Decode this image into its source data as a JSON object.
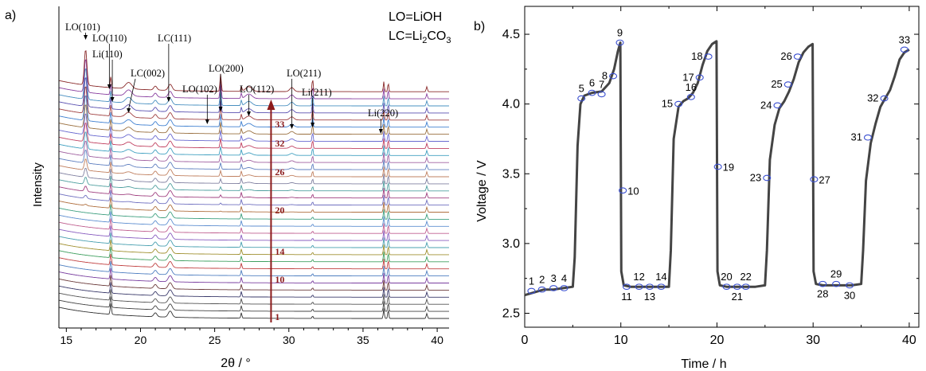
{
  "chart_data": [
    {
      "panel_label": "a)",
      "type": "line",
      "xlabel": "2θ / °",
      "ylabel": "Intensity",
      "xlim": [
        14.5,
        40.8
      ],
      "x_ticks": [
        15,
        20,
        25,
        30,
        35,
        40
      ],
      "legend_lines": [
        "LO=LiOH",
        "LC=Li2CO3"
      ],
      "arrow_labels": [
        "1",
        "10",
        "14",
        "20",
        "26",
        "32",
        "33"
      ],
      "peaks": [
        {
          "label": "LO(101)",
          "x": 16.3
        },
        {
          "label": "LO(110)",
          "x": 17.9
        },
        {
          "label": "Li(110)",
          "x": 18.1
        },
        {
          "label": "LC(002)",
          "x": 19.2
        },
        {
          "label": "LC(111)",
          "x": 21.9
        },
        {
          "label": "LO(102)",
          "x": 24.5
        },
        {
          "label": "LO(200)",
          "x": 25.4
        },
        {
          "label": "LO(112)",
          "x": 27.3
        },
        {
          "label": "LO(211)",
          "x": 30.2
        },
        {
          "label": "Li(211)",
          "x": 31.6
        },
        {
          "label": "Li(220)",
          "x": 36.2
        }
      ],
      "n_patterns": 33
    },
    {
      "panel_label": "b)",
      "type": "line",
      "xlabel": "Time / h",
      "ylabel": "Voltage / V",
      "xlim": [
        0,
        41
      ],
      "ylim": [
        2.4,
        4.7
      ],
      "x_ticks": [
        0,
        10,
        20,
        30,
        40
      ],
      "y_ticks": [
        "2.5",
        "3.0",
        "3.5",
        "4.0",
        "4.5"
      ],
      "curve": {
        "x": [
          0,
          1,
          2,
          3,
          4,
          5,
          5.2,
          5.5,
          5.8,
          6.2,
          7,
          8,
          8.8,
          9.3,
          9.7,
          9.95,
          10.05,
          10.3,
          11,
          12,
          13,
          14,
          15,
          15.2,
          15.5,
          16,
          16.5,
          17,
          17.5,
          18,
          18.5,
          19,
          19.5,
          19.95,
          20.05,
          20.3,
          21,
          22,
          23,
          24,
          25,
          25.2,
          25.5,
          26,
          26.5,
          27,
          27.5,
          28,
          28.5,
          29,
          29.5,
          29.95,
          30.05,
          30.3,
          31,
          32,
          33,
          34,
          35,
          35.2,
          35.5,
          36,
          36.5,
          37,
          37.5,
          38,
          38.5,
          39,
          39.5,
          40
        ],
        "y": [
          2.63,
          2.65,
          2.67,
          2.67,
          2.68,
          2.69,
          2.9,
          3.7,
          4.0,
          4.06,
          4.08,
          4.09,
          4.15,
          4.25,
          4.38,
          4.44,
          2.8,
          2.7,
          2.69,
          2.69,
          2.69,
          2.69,
          2.69,
          2.95,
          3.75,
          3.98,
          4.02,
          4.04,
          4.08,
          4.15,
          4.28,
          4.38,
          4.43,
          4.45,
          2.8,
          2.7,
          2.69,
          2.69,
          2.69,
          2.69,
          2.7,
          2.95,
          3.6,
          3.85,
          3.97,
          4.02,
          4.09,
          4.18,
          4.3,
          4.37,
          4.41,
          4.43,
          2.8,
          2.71,
          2.7,
          2.7,
          2.7,
          2.7,
          2.71,
          2.95,
          3.45,
          3.72,
          3.86,
          3.98,
          4.04,
          4.1,
          4.2,
          4.32,
          4.37,
          4.39
        ]
      },
      "markers": [
        {
          "label": "1",
          "x": 0.7,
          "y": 2.66
        },
        {
          "label": "2",
          "x": 1.8,
          "y": 2.67
        },
        {
          "label": "3",
          "x": 3.0,
          "y": 2.68
        },
        {
          "label": "4",
          "x": 4.1,
          "y": 2.68
        },
        {
          "label": "5",
          "x": 5.9,
          "y": 4.04
        },
        {
          "label": "6",
          "x": 7.0,
          "y": 4.08
        },
        {
          "label": "7",
          "x": 8.0,
          "y": 4.07
        },
        {
          "label": "8",
          "x": 9.2,
          "y": 4.2
        },
        {
          "label": "9",
          "x": 9.9,
          "y": 4.44
        },
        {
          "label": "10",
          "x": 10.2,
          "y": 3.38
        },
        {
          "label": "11",
          "x": 10.6,
          "y": 2.69
        },
        {
          "label": "12",
          "x": 11.9,
          "y": 2.69
        },
        {
          "label": "13",
          "x": 13.0,
          "y": 2.69
        },
        {
          "label": "14",
          "x": 14.2,
          "y": 2.69
        },
        {
          "label": "15",
          "x": 16.0,
          "y": 4.0
        },
        {
          "label": "16",
          "x": 17.3,
          "y": 4.05
        },
        {
          "label": "17",
          "x": 18.2,
          "y": 4.19
        },
        {
          "label": "18",
          "x": 19.1,
          "y": 4.34
        },
        {
          "label": "19",
          "x": 20.1,
          "y": 3.55
        },
        {
          "label": "20",
          "x": 21.0,
          "y": 2.69
        },
        {
          "label": "21",
          "x": 22.1,
          "y": 2.69
        },
        {
          "label": "22",
          "x": 23.0,
          "y": 2.69
        },
        {
          "label": "23",
          "x": 25.2,
          "y": 3.47
        },
        {
          "label": "24",
          "x": 26.3,
          "y": 3.99
        },
        {
          "label": "25",
          "x": 27.4,
          "y": 4.14
        },
        {
          "label": "26",
          "x": 28.4,
          "y": 4.34
        },
        {
          "label": "27",
          "x": 30.1,
          "y": 3.46
        },
        {
          "label": "28",
          "x": 31.0,
          "y": 2.71
        },
        {
          "label": "29",
          "x": 32.4,
          "y": 2.71
        },
        {
          "label": "30",
          "x": 33.8,
          "y": 2.7
        },
        {
          "label": "31",
          "x": 35.7,
          "y": 3.76
        },
        {
          "label": "32",
          "x": 37.4,
          "y": 4.04
        },
        {
          "label": "33",
          "x": 39.5,
          "y": 4.39
        }
      ]
    }
  ]
}
